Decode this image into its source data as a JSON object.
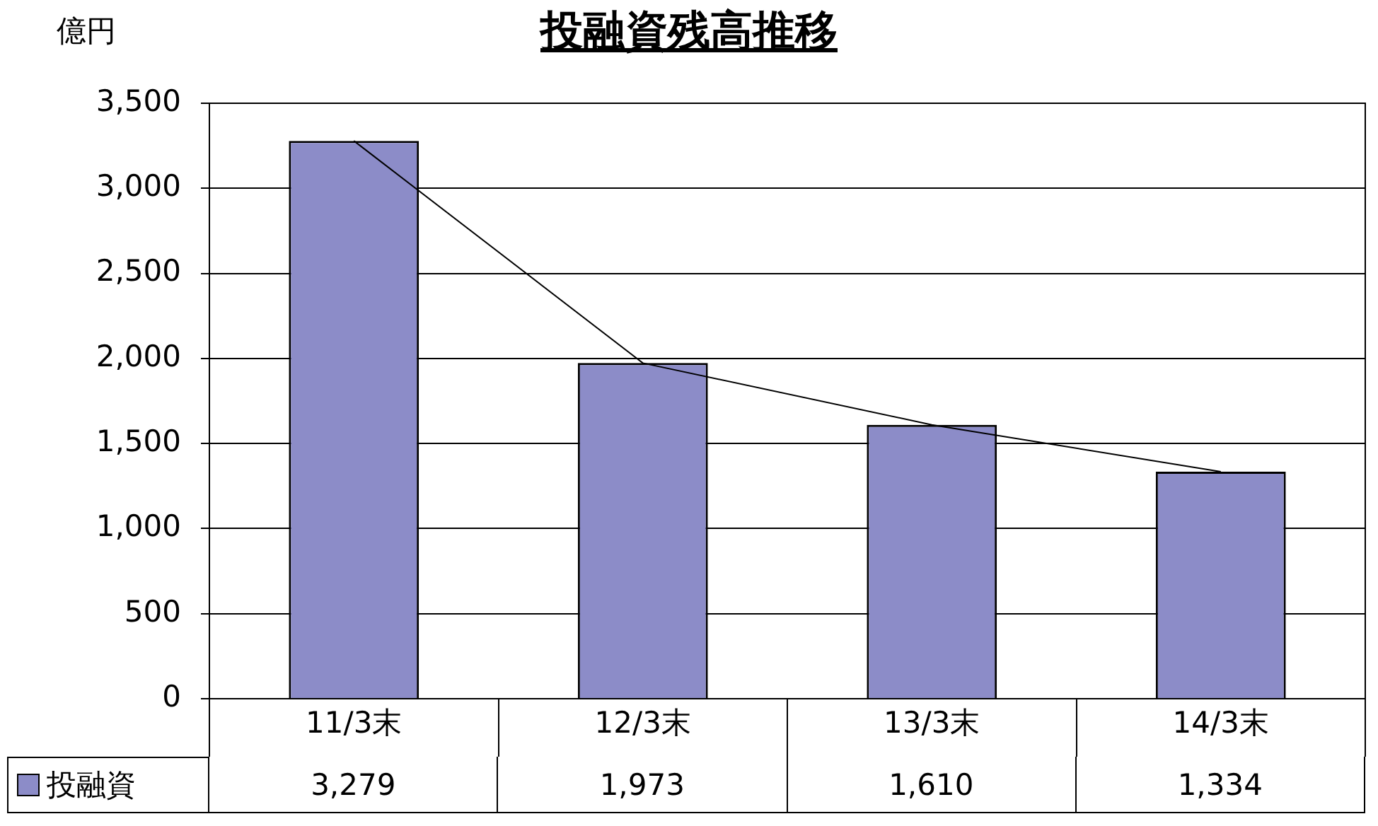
{
  "chart_data": {
    "type": "bar",
    "title": "投融資残高推移",
    "ylabel": "億円",
    "categories": [
      "11/3末",
      "12/3末",
      "13/3末",
      "14/3末"
    ],
    "series": [
      {
        "name": "投融資",
        "color": "#8c8cc8",
        "values": [
          3279,
          1973,
          1610,
          1334
        ],
        "value_labels": [
          "3,279",
          "1,973",
          "1,610",
          "1,334"
        ]
      },
      {
        "type": "line",
        "color": "#000000",
        "marker": "none",
        "values": [
          3279,
          1973,
          1610,
          1334
        ]
      }
    ],
    "ylim": [
      0,
      3500
    ],
    "yticks": [
      0,
      500,
      {
        "value": 1000,
        "label": "1,000"
      },
      {
        "value": 1500,
        "label": "1,500"
      },
      {
        "value": 2000,
        "label": "2,000"
      },
      {
        "value": 2500,
        "label": "2,500"
      },
      {
        "value": 3000,
        "label": "3,000"
      },
      {
        "value": 3500,
        "label": "3,500"
      }
    ],
    "grid": "y",
    "legend": "bottom"
  }
}
